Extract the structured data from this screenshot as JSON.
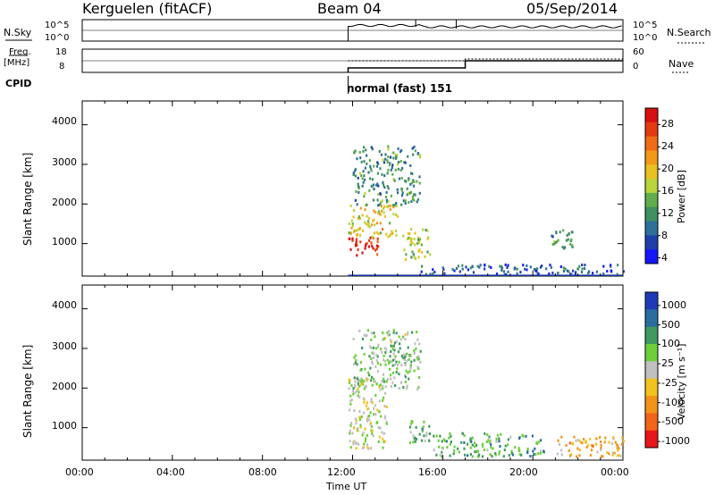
{
  "header": {
    "station": "Kerguelen (fitACF)",
    "beam": "Beam 04",
    "date": "05/Sep/2014"
  },
  "params": {
    "nsky_label": "N.Sky",
    "nsearch_label": "N.Search",
    "nsky_ticks": [
      "10^5",
      "10^0"
    ],
    "nsearch_ticks": [
      "10^5",
      "10^0"
    ],
    "freq_label": "Freq.",
    "freq_unit": "[MHz]",
    "freq_ticks": [
      "18",
      "8"
    ],
    "nave_label": "Nave",
    "nave_ticks": [
      "60",
      "0"
    ],
    "cpid_label": "CPID",
    "cpid_value": "normal (fast) 151"
  },
  "time_axis": {
    "ticks": [
      "00:00",
      "04:00",
      "08:00",
      "12:00",
      "16:00",
      "20:00",
      "00:00"
    ],
    "label": "Time UT"
  },
  "chart_data": [
    {
      "type": "heatmap",
      "quantity": "Power",
      "ylabel": "Slant Range [km]",
      "yticks": [
        "4000",
        "3000",
        "2000",
        "1000"
      ],
      "ylim": [
        180,
        4600
      ],
      "xlim_hours": [
        0,
        24
      ],
      "colorbar": {
        "label": "Power [dB]",
        "ticks": [
          "28",
          "24",
          "20",
          "16",
          "12",
          "8",
          "4"
        ],
        "colors": [
          "#1515ff",
          "#1e3fa8",
          "#2e6f9a",
          "#3f8f63",
          "#5fae4a",
          "#b8d43a",
          "#e8c020",
          "#f29a18",
          "#f06c14",
          "#e43a12",
          "#d81010"
        ]
      },
      "patches": [
        {
          "t": [
            11.8,
            13.2
          ],
          "r": [
            700,
            1200
          ],
          "level": 0.95
        },
        {
          "t": [
            11.8,
            14.0
          ],
          "r": [
            1200,
            2000
          ],
          "level": 0.6
        },
        {
          "t": [
            12.0,
            15.0
          ],
          "r": [
            2000,
            3500
          ],
          "level": 0.3
        },
        {
          "t": [
            14.2,
            15.4
          ],
          "r": [
            600,
            1400
          ],
          "level": 0.5
        },
        {
          "t": [
            15.0,
            24.0
          ],
          "r": [
            250,
            500
          ],
          "level": 0.15
        },
        {
          "t": [
            20.8,
            21.8
          ],
          "r": [
            900,
            1400
          ],
          "level": 0.3
        }
      ]
    },
    {
      "type": "heatmap",
      "quantity": "Velocity",
      "ylabel": "Slant Range [km]",
      "yticks": [
        "4000",
        "3000",
        "2000",
        "1000"
      ],
      "ylim": [
        180,
        4600
      ],
      "xlim_hours": [
        0,
        24
      ],
      "colorbar": {
        "label": "Velocity [m s⁻¹]",
        "ticks": [
          "1000",
          "500",
          "100",
          "25",
          "-25",
          "-100",
          "-500",
          "-1000"
        ],
        "colors": [
          "#1e3ab8",
          "#2a6ea0",
          "#3f9a5f",
          "#6ccf3a",
          "#c0c0c0",
          "#f2c21e",
          "#f29418",
          "#f2641a",
          "#e8161a"
        ]
      },
      "patches": [
        {
          "t": [
            11.8,
            13.5
          ],
          "r": [
            500,
            2300
          ],
          "level": 0.5
        },
        {
          "t": [
            12.0,
            15.0
          ],
          "r": [
            2000,
            3500
          ],
          "level": 0.6
        },
        {
          "t": [
            14.4,
            15.4
          ],
          "r": [
            600,
            1200
          ],
          "level": 0.65
        },
        {
          "t": [
            15.5,
            20.5
          ],
          "r": [
            300,
            900
          ],
          "level": 0.7
        },
        {
          "t": [
            21.0,
            24.0
          ],
          "r": [
            300,
            800
          ],
          "level": 0.35
        }
      ]
    }
  ]
}
